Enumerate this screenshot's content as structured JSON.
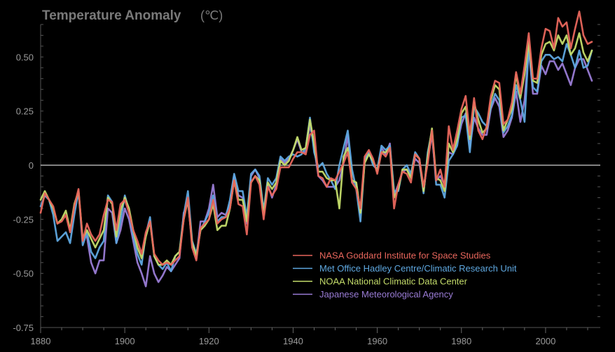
{
  "chart_data": {
    "type": "line",
    "title": "Temperature Anomaly",
    "title_unit": "(℃)",
    "xlabel": "",
    "ylabel": "",
    "xlim": [
      1880,
      2013
    ],
    "ylim": [
      -0.75,
      0.65
    ],
    "x_ticks": [
      1880,
      1900,
      1920,
      1940,
      1960,
      1980,
      2000
    ],
    "x_tick_labels": [
      "1880",
      "1900",
      "1920",
      "1940",
      "1960",
      "1980",
      "2000"
    ],
    "y_ticks": [
      -0.75,
      -0.5,
      -0.25,
      0,
      0.25,
      0.5
    ],
    "y_tick_labels": [
      "-0.75",
      "-0.50",
      "-0.25",
      "0",
      "0.25",
      "0.50"
    ],
    "x_start": 1880,
    "series": [
      {
        "name": "NASA Goddard Institute for Space Studies",
        "color": "#e8665c",
        "values": [
          -0.22,
          -0.13,
          -0.16,
          -0.19,
          -0.27,
          -0.26,
          -0.23,
          -0.31,
          -0.19,
          -0.11,
          -0.35,
          -0.27,
          -0.32,
          -0.35,
          -0.32,
          -0.23,
          -0.16,
          -0.17,
          -0.3,
          -0.18,
          -0.16,
          -0.22,
          -0.3,
          -0.35,
          -0.41,
          -0.31,
          -0.26,
          -0.41,
          -0.44,
          -0.46,
          -0.45,
          -0.46,
          -0.44,
          -0.42,
          -0.25,
          -0.15,
          -0.38,
          -0.44,
          -0.29,
          -0.27,
          -0.25,
          -0.16,
          -0.27,
          -0.25,
          -0.24,
          -0.2,
          -0.07,
          -0.18,
          -0.19,
          -0.32,
          -0.08,
          -0.05,
          -0.09,
          -0.25,
          -0.1,
          -0.14,
          -0.11,
          -0.01,
          -0.01,
          -0.01,
          0.03,
          0.06,
          0.06,
          0.05,
          0.14,
          0.16,
          -0.05,
          -0.06,
          -0.1,
          -0.06,
          -0.07,
          -0.03,
          0.01,
          0.06,
          -0.08,
          -0.11,
          -0.2,
          0.04,
          0.07,
          0.03,
          -0.04,
          0.06,
          0.04,
          0.08,
          -0.2,
          -0.09,
          -0.03,
          -0.04,
          -0.08,
          0.05,
          0.03,
          -0.1,
          0.01,
          0.16,
          -0.07,
          -0.02,
          -0.1,
          0.18,
          0.07,
          0.16,
          0.26,
          0.32,
          0.14,
          0.31,
          0.16,
          0.12,
          0.18,
          0.32,
          0.39,
          0.38,
          0.19,
          0.21,
          0.29,
          0.43,
          0.33,
          0.46,
          0.61,
          0.4,
          0.4,
          0.54,
          0.63,
          0.62,
          0.54,
          0.68,
          0.64,
          0.66,
          0.54,
          0.63,
          0.71,
          0.6,
          0.56,
          0.57
        ],
        "values_note": "yearly 1880-2013"
      },
      {
        "name": "Met Office Hadley Centre/Climatic Research Unit",
        "color": "#5fa8e0",
        "values": [
          -0.19,
          -0.14,
          -0.16,
          -0.23,
          -0.35,
          -0.33,
          -0.31,
          -0.36,
          -0.23,
          -0.12,
          -0.37,
          -0.31,
          -0.4,
          -0.43,
          -0.38,
          -0.35,
          -0.14,
          -0.17,
          -0.36,
          -0.26,
          -0.14,
          -0.21,
          -0.33,
          -0.41,
          -0.46,
          -0.32,
          -0.24,
          -0.42,
          -0.46,
          -0.48,
          -0.45,
          -0.49,
          -0.42,
          -0.4,
          -0.23,
          -0.12,
          -0.35,
          -0.41,
          -0.3,
          -0.26,
          -0.22,
          -0.14,
          -0.26,
          -0.24,
          -0.24,
          -0.16,
          -0.04,
          -0.12,
          -0.12,
          -0.24,
          -0.04,
          -0.02,
          -0.05,
          -0.21,
          -0.06,
          -0.09,
          -0.06,
          0.04,
          0.02,
          0.04,
          0.05,
          0.04,
          0.05,
          0.08,
          0.22,
          0.06,
          -0.01,
          0.01,
          -0.04,
          -0.07,
          -0.11,
          0.0,
          0.08,
          0.16,
          -0.02,
          -0.11,
          -0.26,
          0.02,
          0.06,
          0.0,
          -0.02,
          0.09,
          0.07,
          0.09,
          -0.12,
          -0.12,
          -0.02,
          0.0,
          -0.04,
          0.06,
          0.03,
          -0.13,
          0.06,
          0.16,
          -0.09,
          -0.09,
          -0.15,
          0.02,
          0.05,
          0.09,
          0.22,
          0.23,
          0.06,
          0.27,
          0.24,
          0.2,
          0.18,
          0.27,
          0.33,
          0.3,
          0.15,
          0.18,
          0.23,
          0.37,
          0.3,
          0.2,
          0.55,
          0.36,
          0.34,
          0.48,
          0.51,
          0.51,
          0.49,
          0.5,
          0.48,
          0.56,
          0.51,
          0.45,
          0.53,
          0.45,
          0.46,
          0.53
        ],
        "values_note": "yearly 1880-2013"
      },
      {
        "name": "NOAA National Climatic Data Center",
        "color": "#c4dc6a",
        "values": [
          -0.16,
          -0.12,
          -0.16,
          -0.2,
          -0.27,
          -0.25,
          -0.21,
          -0.3,
          -0.18,
          -0.12,
          -0.34,
          -0.3,
          -0.34,
          -0.38,
          -0.34,
          -0.3,
          -0.15,
          -0.18,
          -0.33,
          -0.21,
          -0.15,
          -0.2,
          -0.3,
          -0.38,
          -0.43,
          -0.33,
          -0.26,
          -0.42,
          -0.46,
          -0.46,
          -0.44,
          -0.46,
          -0.42,
          -0.4,
          -0.25,
          -0.16,
          -0.36,
          -0.42,
          -0.3,
          -0.28,
          -0.25,
          -0.18,
          -0.3,
          -0.28,
          -0.28,
          -0.2,
          -0.07,
          -0.16,
          -0.16,
          -0.26,
          -0.08,
          -0.05,
          -0.07,
          -0.23,
          -0.08,
          -0.11,
          -0.08,
          0.02,
          0.0,
          0.02,
          0.07,
          0.13,
          0.07,
          0.08,
          0.21,
          0.1,
          -0.03,
          -0.03,
          -0.06,
          -0.07,
          -0.07,
          -0.2,
          0.04,
          0.08,
          -0.07,
          -0.08,
          -0.22,
          0.01,
          0.05,
          0.02,
          -0.03,
          0.06,
          0.06,
          0.08,
          -0.15,
          -0.11,
          -0.02,
          -0.02,
          -0.06,
          0.05,
          0.03,
          -0.12,
          0.04,
          0.17,
          -0.06,
          -0.07,
          -0.12,
          0.1,
          0.06,
          0.12,
          0.24,
          0.27,
          0.12,
          0.29,
          0.21,
          0.15,
          0.17,
          0.3,
          0.37,
          0.35,
          0.16,
          0.21,
          0.26,
          0.42,
          0.31,
          0.42,
          0.57,
          0.39,
          0.38,
          0.51,
          0.56,
          0.57,
          0.53,
          0.6,
          0.56,
          0.6,
          0.51,
          0.54,
          0.61,
          0.52,
          0.48,
          0.53
        ],
        "values_note": "yearly 1880-2013"
      },
      {
        "name": "Japanese Meteorological Agency",
        "color": "#9a7cd6",
        "values": [
          null,
          null,
          null,
          null,
          null,
          null,
          null,
          null,
          null,
          null,
          null,
          -0.33,
          -0.45,
          -0.5,
          -0.44,
          -0.44,
          -0.2,
          -0.22,
          -0.36,
          -0.3,
          -0.2,
          -0.25,
          -0.35,
          -0.45,
          -0.5,
          -0.56,
          -0.42,
          -0.5,
          -0.54,
          -0.51,
          -0.47,
          -0.49,
          -0.46,
          -0.43,
          -0.22,
          -0.17,
          -0.36,
          -0.43,
          -0.26,
          -0.26,
          -0.2,
          -0.09,
          -0.24,
          -0.22,
          -0.23,
          -0.18,
          -0.05,
          -0.14,
          -0.15,
          -0.27,
          -0.05,
          -0.02,
          -0.06,
          -0.22,
          -0.09,
          -0.15,
          -0.09,
          0.03,
          0.01,
          0.03,
          0.07,
          0.12,
          0.06,
          0.06,
          0.19,
          0.08,
          -0.05,
          -0.07,
          -0.1,
          -0.1,
          -0.1,
          -0.07,
          0.01,
          0.14,
          -0.08,
          -0.08,
          -0.22,
          0.03,
          0.06,
          0.02,
          -0.03,
          0.08,
          0.05,
          0.1,
          -0.14,
          -0.09,
          -0.03,
          -0.02,
          -0.05,
          0.03,
          0.01,
          -0.12,
          0.03,
          0.14,
          -0.07,
          -0.05,
          -0.09,
          0.06,
          0.05,
          0.1,
          0.19,
          0.24,
          0.08,
          0.22,
          0.17,
          0.14,
          0.14,
          0.26,
          0.31,
          0.27,
          0.13,
          0.16,
          0.22,
          0.34,
          0.2,
          0.3,
          0.54,
          0.33,
          0.33,
          0.46,
          0.42,
          0.48,
          0.48,
          0.44,
          0.47,
          0.42,
          0.37,
          0.45,
          0.49,
          0.49,
          0.44,
          0.39
        ],
        "values_note": "yearly 1880-2013"
      }
    ],
    "legend_position": "bottom-center",
    "zero_line": true,
    "grid": false
  }
}
